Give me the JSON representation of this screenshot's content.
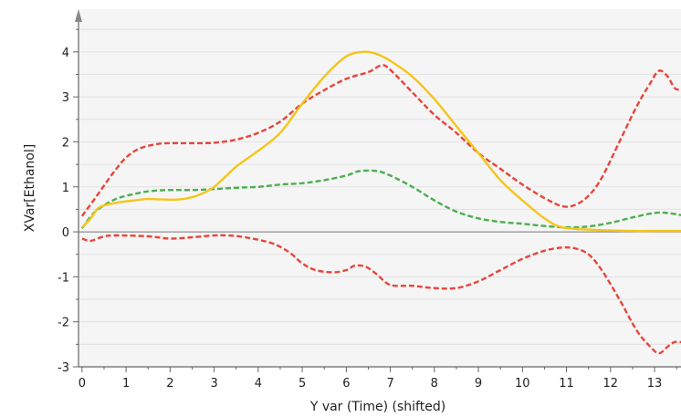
{
  "chart_data": {
    "type": "line",
    "title": "",
    "xlabel": "Y var (Time) (shifted)",
    "ylabel": "XVar[Ethanol]",
    "xlim": [
      -0.08,
      13.6
    ],
    "ylim": [
      -3.0,
      4.95
    ],
    "x_ticks": [
      0,
      1,
      2,
      3,
      4,
      5,
      6,
      7,
      8,
      9,
      10,
      11,
      12,
      13
    ],
    "y_ticks": [
      -3,
      -2,
      -1,
      0,
      1,
      2,
      3,
      4
    ],
    "grid": true,
    "legend": "none",
    "colors": {
      "plot_background": "#f5f5f5",
      "grid": "#e2e2e2",
      "axis": "#666666",
      "zero_line": "#777777",
      "yellow": "#f5c518",
      "red": "#e8453c",
      "green": "#4caf50"
    },
    "series": [
      {
        "style": "solid",
        "color": "#f5c518",
        "points": [
          [
            0,
            0.1
          ],
          [
            0.2,
            0.3
          ],
          [
            0.4,
            0.55
          ],
          [
            0.8,
            0.65
          ],
          [
            1.2,
            0.7
          ],
          [
            1.5,
            0.73
          ],
          [
            1.8,
            0.72
          ],
          [
            2.2,
            0.72
          ],
          [
            2.6,
            0.8
          ],
          [
            3.0,
            1.0
          ],
          [
            3.5,
            1.45
          ],
          [
            4.0,
            1.8
          ],
          [
            4.5,
            2.2
          ],
          [
            5.0,
            2.85
          ],
          [
            5.5,
            3.45
          ],
          [
            6.0,
            3.9
          ],
          [
            6.4,
            4.0
          ],
          [
            6.7,
            3.95
          ],
          [
            7.0,
            3.8
          ],
          [
            7.5,
            3.45
          ],
          [
            8.0,
            2.95
          ],
          [
            8.5,
            2.35
          ],
          [
            9.0,
            1.75
          ],
          [
            9.5,
            1.15
          ],
          [
            10.0,
            0.7
          ],
          [
            10.5,
            0.3
          ],
          [
            10.9,
            0.1
          ],
          [
            11.5,
            0.05
          ],
          [
            12.0,
            0.03
          ],
          [
            12.5,
            0.02
          ],
          [
            13.0,
            0.02
          ],
          [
            13.6,
            0.02
          ]
        ]
      },
      {
        "style": "dashed",
        "color": "#e8453c",
        "points": [
          [
            0,
            0.35
          ],
          [
            0.3,
            0.75
          ],
          [
            0.7,
            1.3
          ],
          [
            1.0,
            1.65
          ],
          [
            1.3,
            1.85
          ],
          [
            1.7,
            1.95
          ],
          [
            2.0,
            1.97
          ],
          [
            2.5,
            1.97
          ],
          [
            3.0,
            1.98
          ],
          [
            3.5,
            2.05
          ],
          [
            4.0,
            2.2
          ],
          [
            4.5,
            2.45
          ],
          [
            5.0,
            2.85
          ],
          [
            5.5,
            3.15
          ],
          [
            6.0,
            3.4
          ],
          [
            6.5,
            3.55
          ],
          [
            6.8,
            3.7
          ],
          [
            7.0,
            3.6
          ],
          [
            7.5,
            3.1
          ],
          [
            8.0,
            2.6
          ],
          [
            8.5,
            2.2
          ],
          [
            9.0,
            1.75
          ],
          [
            9.5,
            1.4
          ],
          [
            10.0,
            1.05
          ],
          [
            10.5,
            0.75
          ],
          [
            10.9,
            0.57
          ],
          [
            11.2,
            0.6
          ],
          [
            11.5,
            0.8
          ],
          [
            11.8,
            1.2
          ],
          [
            12.2,
            2.0
          ],
          [
            12.6,
            2.8
          ],
          [
            12.9,
            3.3
          ],
          [
            13.1,
            3.58
          ],
          [
            13.3,
            3.45
          ],
          [
            13.45,
            3.2
          ],
          [
            13.6,
            3.15
          ]
        ]
      },
      {
        "style": "dashed",
        "color": "#e8453c",
        "points": [
          [
            0,
            -0.15
          ],
          [
            0.2,
            -0.2
          ],
          [
            0.5,
            -0.1
          ],
          [
            0.8,
            -0.08
          ],
          [
            1.5,
            -0.1
          ],
          [
            2.0,
            -0.15
          ],
          [
            2.5,
            -0.12
          ],
          [
            3.0,
            -0.08
          ],
          [
            3.3,
            -0.08
          ],
          [
            3.7,
            -0.12
          ],
          [
            4.3,
            -0.25
          ],
          [
            4.7,
            -0.45
          ],
          [
            5.0,
            -0.7
          ],
          [
            5.3,
            -0.85
          ],
          [
            5.7,
            -0.9
          ],
          [
            6.0,
            -0.85
          ],
          [
            6.2,
            -0.75
          ],
          [
            6.45,
            -0.78
          ],
          [
            6.7,
            -0.95
          ],
          [
            7.0,
            -1.18
          ],
          [
            7.5,
            -1.2
          ],
          [
            8.0,
            -1.25
          ],
          [
            8.5,
            -1.25
          ],
          [
            9.0,
            -1.1
          ],
          [
            9.5,
            -0.85
          ],
          [
            10.0,
            -0.6
          ],
          [
            10.5,
            -0.42
          ],
          [
            10.9,
            -0.35
          ],
          [
            11.2,
            -0.37
          ],
          [
            11.5,
            -0.5
          ],
          [
            11.8,
            -0.85
          ],
          [
            12.2,
            -1.5
          ],
          [
            12.6,
            -2.2
          ],
          [
            12.9,
            -2.55
          ],
          [
            13.1,
            -2.7
          ],
          [
            13.3,
            -2.55
          ],
          [
            13.45,
            -2.45
          ],
          [
            13.6,
            -2.45
          ]
        ]
      },
      {
        "style": "dashed",
        "color": "#4caf50",
        "points": [
          [
            0,
            0.08
          ],
          [
            0.3,
            0.45
          ],
          [
            0.7,
            0.7
          ],
          [
            1.0,
            0.8
          ],
          [
            1.5,
            0.9
          ],
          [
            2.0,
            0.93
          ],
          [
            2.5,
            0.93
          ],
          [
            3.0,
            0.95
          ],
          [
            3.5,
            0.98
          ],
          [
            4.0,
            1.0
          ],
          [
            4.5,
            1.05
          ],
          [
            5.0,
            1.08
          ],
          [
            5.5,
            1.15
          ],
          [
            6.0,
            1.25
          ],
          [
            6.3,
            1.35
          ],
          [
            6.7,
            1.35
          ],
          [
            7.0,
            1.25
          ],
          [
            7.5,
            1.0
          ],
          [
            8.0,
            0.7
          ],
          [
            8.5,
            0.45
          ],
          [
            9.0,
            0.3
          ],
          [
            9.5,
            0.22
          ],
          [
            10.0,
            0.18
          ],
          [
            10.5,
            0.13
          ],
          [
            11.0,
            0.1
          ],
          [
            11.5,
            0.12
          ],
          [
            12.0,
            0.2
          ],
          [
            12.5,
            0.32
          ],
          [
            13.0,
            0.42
          ],
          [
            13.3,
            0.42
          ],
          [
            13.6,
            0.37
          ]
        ]
      }
    ]
  }
}
